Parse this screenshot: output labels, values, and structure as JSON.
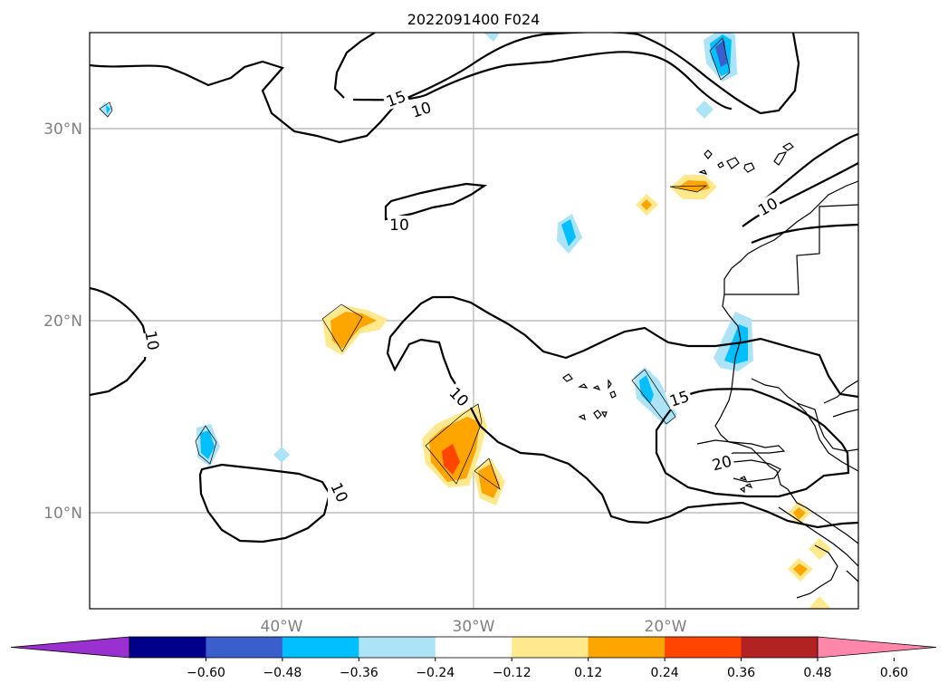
{
  "title": "2022091400 F024",
  "map": {
    "lon_range": [
      -50,
      -10
    ],
    "lat_range": [
      5,
      35
    ],
    "lat_labels": [
      "30°N",
      "20°N",
      "10°N"
    ],
    "lon_labels": [
      "40°W",
      "30°W",
      "20°W"
    ],
    "contour_labels": [
      "15",
      "10",
      "10",
      "10",
      "10",
      "10",
      "10",
      "15",
      "20"
    ]
  },
  "colorbar": {
    "ticks": [
      "−0.60",
      "−0.48",
      "−0.36",
      "−0.24",
      "−0.12",
      "0.12",
      "0.24",
      "0.36",
      "0.48",
      "0.60"
    ],
    "colors": [
      "#9b30d0",
      "#00008b",
      "#3a5fcd",
      "#00bfff",
      "#ade3f7",
      "#ffffff",
      "#ffe98c",
      "#ffa500",
      "#ff4500",
      "#b22222",
      "#ff88aa"
    ]
  }
}
